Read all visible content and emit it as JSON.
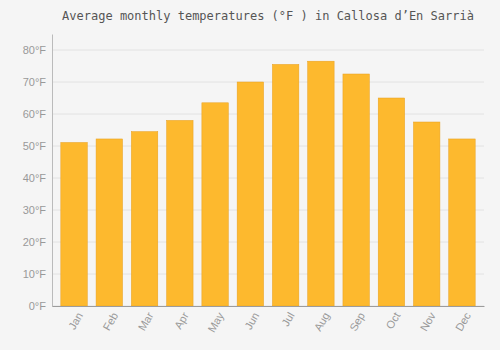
{
  "chart_data": {
    "type": "bar",
    "title": "Average monthly temperatures (°F ) in Callosa d’En Sarrià",
    "categories": [
      "Jan",
      "Feb",
      "Mar",
      "Apr",
      "May",
      "Jun",
      "Jul",
      "Aug",
      "Sep",
      "Oct",
      "Nov",
      "Dec"
    ],
    "values": [
      51.1,
      52.2,
      54.5,
      58.0,
      63.5,
      70.0,
      75.5,
      76.5,
      72.5,
      65.0,
      57.5,
      52.2
    ],
    "color": "#FDB92E",
    "ylim": [
      0,
      85
    ],
    "yticks": [
      {
        "value": 0,
        "label": "0°F"
      },
      {
        "value": 10,
        "label": "10°F"
      },
      {
        "value": 20,
        "label": "20°F"
      },
      {
        "value": 30,
        "label": "30°F"
      },
      {
        "value": 40,
        "label": "40°F"
      },
      {
        "value": 50,
        "label": "50°F"
      },
      {
        "value": 60,
        "label": "60°F"
      },
      {
        "value": 70,
        "label": "70°F"
      },
      {
        "value": 80,
        "label": "80°F"
      }
    ],
    "grid": true
  }
}
